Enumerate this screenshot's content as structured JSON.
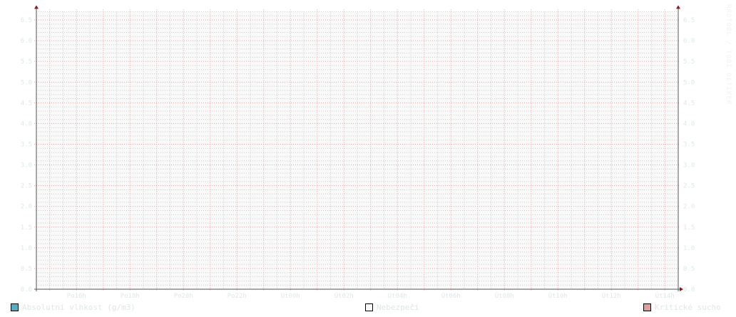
{
  "chart_data": {
    "type": "line",
    "title": "",
    "xlabel": "",
    "ylabel": "",
    "ylim": [
      0,
      6.7
    ],
    "y_ticks": [
      "0.0",
      "0.5",
      "1.0",
      "1.5",
      "2.0",
      "2.5",
      "3.0",
      "3.5",
      "4.0",
      "4.5",
      "5.0",
      "5.5",
      "6.0",
      "6.5"
    ],
    "y_ticks_right": true,
    "x_range_hours": [
      14.5,
      38.5
    ],
    "x_ticks": [
      {
        "hour": 16,
        "label": "Po16h"
      },
      {
        "hour": 18,
        "label": "Po18h"
      },
      {
        "hour": 20,
        "label": "Po20h"
      },
      {
        "hour": 22,
        "label": "Po22h"
      },
      {
        "hour": 24,
        "label": "Út00h"
      },
      {
        "hour": 26,
        "label": "Út02h"
      },
      {
        "hour": 28,
        "label": "Út04h"
      },
      {
        "hour": 30,
        "label": "Út06h"
      },
      {
        "hour": 32,
        "label": "Út08h"
      },
      {
        "hour": 34,
        "label": "Út10h"
      },
      {
        "hour": 36,
        "label": "Út12h"
      },
      {
        "hour": 38,
        "label": "Út14h"
      }
    ],
    "grid": true,
    "series": [
      {
        "name": "Absolutní vlhkost (g/m3)",
        "color": "#5aabbe",
        "values": []
      },
      {
        "name": "Nebezpečí",
        "color": "#f8f8f8",
        "values": []
      },
      {
        "name": "Kritické sucho",
        "color": "#e19c9c",
        "values": []
      }
    ],
    "legend_placement": "bottom"
  },
  "watermark": "RRDTOOL / TOBI OETIKER",
  "colors": {
    "plot_bg": "#f9f9f9",
    "major_grid": "#e9a0a0",
    "minor_grid": "#cccccc",
    "axis": "#555555",
    "arrow": "#8b1a1a",
    "text": "#dce8e8"
  }
}
